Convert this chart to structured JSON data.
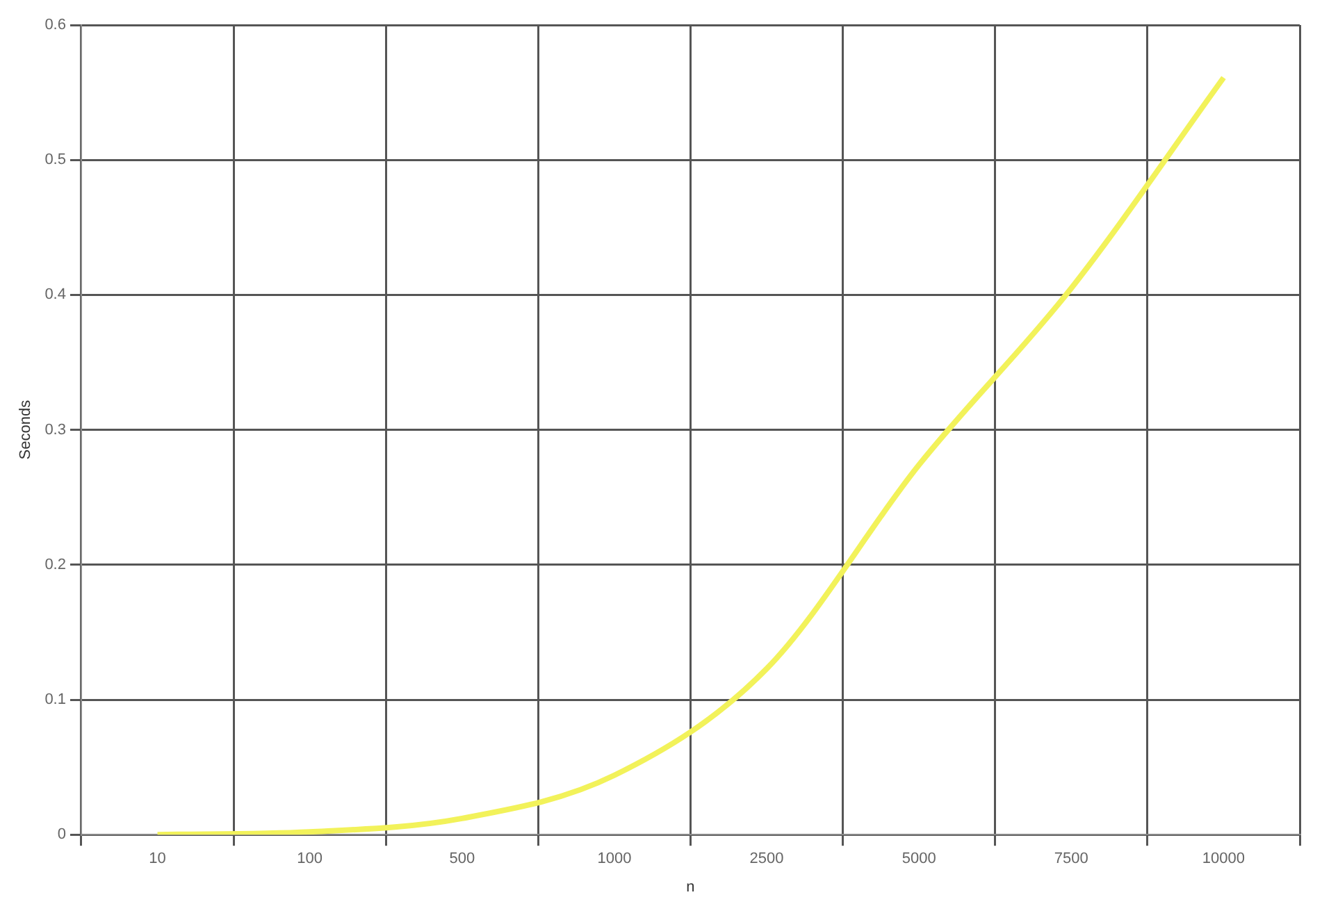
{
  "chart_data": {
    "type": "line",
    "xlabel": "n",
    "ylabel": "Seconds",
    "categories": [
      "10",
      "100",
      "500",
      "1000",
      "2500",
      "5000",
      "7500",
      "10000"
    ],
    "series": [
      {
        "color": "#f2f25a",
        "values": [
          0,
          0.002,
          0.012,
          0.044,
          0.123,
          0.274,
          0.405,
          0.561
        ]
      }
    ],
    "ylim": [
      0,
      0.6
    ],
    "yticks": [
      0,
      0.1,
      0.2,
      0.3,
      0.4,
      0.5,
      0.6
    ],
    "grid": true,
    "legend": false,
    "marker": "none",
    "line_style": "solid"
  }
}
